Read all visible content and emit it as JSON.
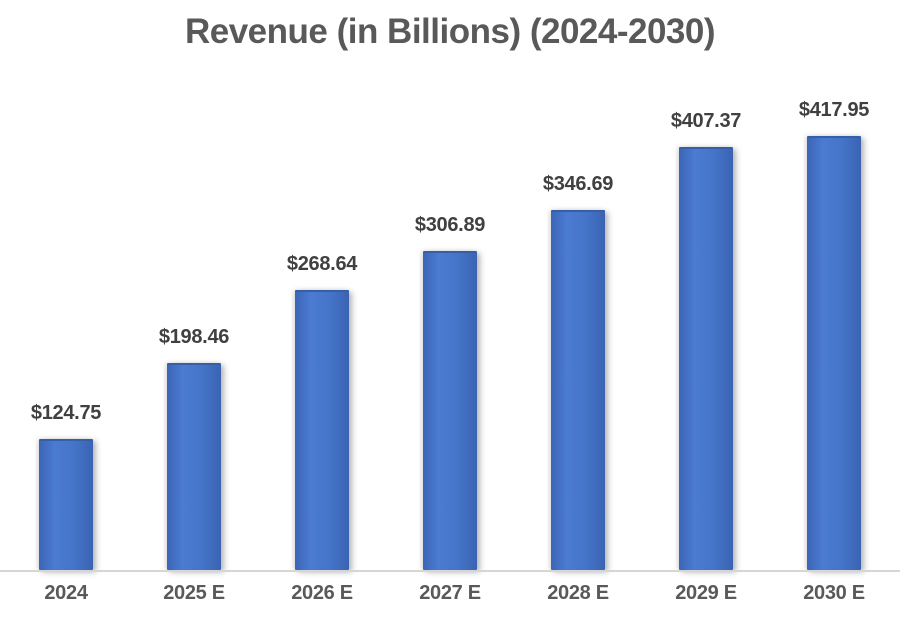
{
  "chart_data": {
    "type": "bar",
    "title": "Revenue (in Billions) (2024-2030)",
    "categories": [
      "2024",
      "2025 E",
      "2026 E",
      "2027 E",
      "2028 E",
      "2029 E",
      "2030 E"
    ],
    "values": [
      124.75,
      198.46,
      268.64,
      306.89,
      346.69,
      407.37,
      417.95
    ],
    "data_labels": [
      "$124.75",
      "$198.46",
      "$268.64",
      "$306.89",
      "$346.69",
      "$407.37",
      "$417.95"
    ],
    "xlabel": "",
    "ylabel": "",
    "ylim": [
      0,
      450
    ],
    "y_axis_visible": false,
    "grid": false,
    "legend": "none",
    "bar_color": "#4472C4",
    "axis_line_color": "#D6D6D6",
    "data_label_color": "#404040",
    "category_label_color": "#595959",
    "title_color": "#595959",
    "background_color": "#FFFFFF"
  }
}
